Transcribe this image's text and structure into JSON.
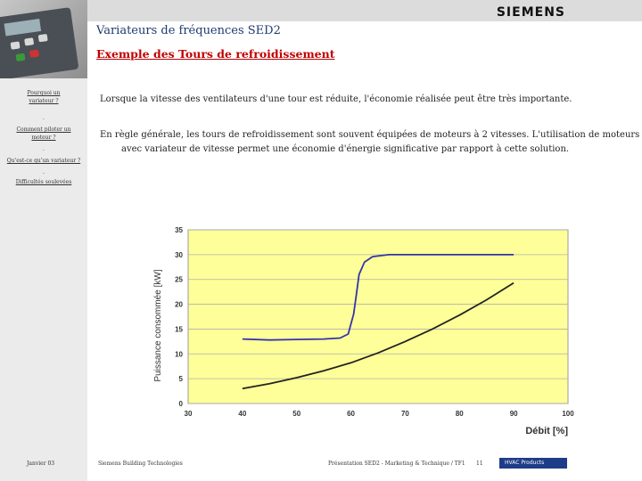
{
  "header": {
    "brand": "SIEMENS",
    "title": "Variateurs de fréquences SED2",
    "subtitle": "Exemple des Tours de refroidissement"
  },
  "sidebar": {
    "links": [
      "Pourquoi un variateur ?",
      "Comment piloter un moteur ?",
      "Qu'est-ce qu'un variateur ?",
      "Difficultés soulevées"
    ],
    "separator": "."
  },
  "body": {
    "paragraph1": "Lorsque la vitesse des ventilateurs d'une tour est réduite, l'économie réalisée peut être très importante.",
    "paragraph2": "En règle générale, les tours de refroidissement sont souvent équipées de moteurs à 2 vitesses. L'utilisation de moteurs avec variateur de vitesse permet une économie d'énergie significative par rapport à cette solution."
  },
  "chart_data": {
    "type": "line",
    "title": "",
    "xlabel": "Débit [%]",
    "ylabel": "Puissance consommée [kW]",
    "xlim": [
      30,
      100
    ],
    "ylim": [
      0,
      35
    ],
    "xticks": [
      30,
      40,
      50,
      60,
      70,
      80,
      90,
      100
    ],
    "yticks": [
      0,
      5,
      10,
      15,
      20,
      25,
      30,
      35
    ],
    "grid": true,
    "background": "#ffff99",
    "series": [
      {
        "color": "#3333aa",
        "points": [
          [
            40,
            13
          ],
          [
            45,
            12.8
          ],
          [
            50,
            12.9
          ],
          [
            55,
            13
          ],
          [
            58,
            13.2
          ],
          [
            59.5,
            14
          ],
          [
            60.5,
            18
          ],
          [
            61,
            22
          ],
          [
            61.5,
            26
          ],
          [
            62.5,
            28.5
          ],
          [
            64,
            29.6
          ],
          [
            67,
            30
          ],
          [
            75,
            30
          ],
          [
            85,
            30
          ],
          [
            90,
            30
          ]
        ]
      },
      {
        "color": "#222222",
        "points": [
          [
            40,
            3
          ],
          [
            45,
            4
          ],
          [
            50,
            5.2
          ],
          [
            55,
            6.6
          ],
          [
            60,
            8.2
          ],
          [
            65,
            10.2
          ],
          [
            70,
            12.5
          ],
          [
            75,
            15
          ],
          [
            80,
            17.8
          ],
          [
            85,
            20.9
          ],
          [
            90,
            24.3
          ]
        ]
      }
    ]
  },
  "footer": {
    "date": "Janvier 03",
    "company": "Siemens Building Technologies",
    "presentation": "Présentation SED2 - Marketing & Technique / TF1",
    "page": "11",
    "dept": "HVAC Products"
  }
}
